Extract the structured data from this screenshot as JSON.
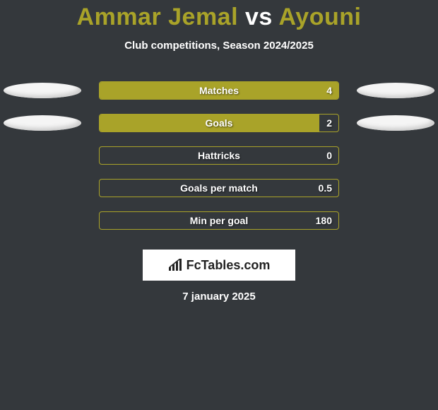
{
  "title": {
    "player1": "Ammar Jemal",
    "vs": "vs",
    "player2": "Ayouni"
  },
  "subtitle": "Club competitions, Season 2024/2025",
  "colors": {
    "background": "#34383c",
    "accent": "#a9a329",
    "text": "#ffffff",
    "ellipse_light": "#f5f5f5",
    "ellipse_shadow": "#cfcfcf"
  },
  "rows": [
    {
      "label": "Matches",
      "value": "4",
      "fill_pct": 100,
      "left_ellipse": true,
      "right_ellipse": true
    },
    {
      "label": "Goals",
      "value": "2",
      "fill_pct": 92,
      "left_ellipse": true,
      "right_ellipse": true
    },
    {
      "label": "Hattricks",
      "value": "0",
      "fill_pct": 0,
      "left_ellipse": false,
      "right_ellipse": false
    },
    {
      "label": "Goals per match",
      "value": "0.5",
      "fill_pct": 0,
      "left_ellipse": false,
      "right_ellipse": false
    },
    {
      "label": "Min per goal",
      "value": "180",
      "fill_pct": 0,
      "left_ellipse": false,
      "right_ellipse": false
    }
  ],
  "logo_text": "FcTables.com",
  "date": "7 january 2025"
}
